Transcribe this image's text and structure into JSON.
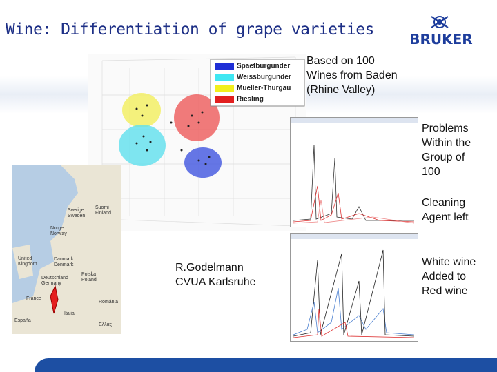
{
  "header": {
    "title": "Wine: Differentiation of grape varieties",
    "logo": "BRUKER"
  },
  "legend": [
    "Spaetburgunder",
    "Weissburgunder",
    "Mueller-Thurgau",
    "Riesling"
  ],
  "notes": {
    "basis": [
      "Based on 100",
      "Wines from Baden",
      "(Rhine Valley)"
    ],
    "problems": [
      "Problems",
      "Within the",
      "Group of",
      "100"
    ],
    "cleaning": [
      "Cleaning",
      "Agent left"
    ],
    "white": [
      "White wine",
      "Added to",
      "Red wine"
    ],
    "credit": [
      "R.Godelmann",
      "CVUA Karlsruhe"
    ]
  },
  "map_labels": [
    "Suomi",
    "Finland",
    "Sverige",
    "Sweden",
    "Norge",
    "Norway",
    "United",
    "Kingdom",
    "Danmark",
    "Denmark",
    "Polska",
    "Poland",
    "Deutschland",
    "Germany",
    "France",
    "România",
    "España",
    "Italia",
    "Ελλάς"
  ]
}
